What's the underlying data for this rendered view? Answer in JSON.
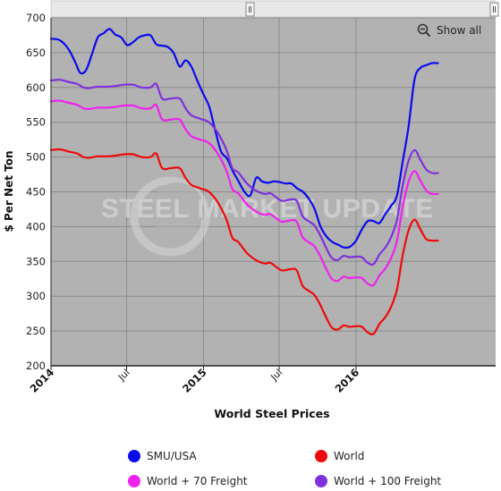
{
  "chart_data": {
    "type": "line",
    "title": "",
    "xlabel": "World Steel Prices",
    "ylabel": "$ Per Net Ton",
    "ylim": [
      200,
      700
    ],
    "yticks": [
      200,
      250,
      300,
      350,
      400,
      450,
      500,
      550,
      600,
      650,
      700
    ],
    "xlim": [
      "2014-01-01",
      "2016-11-30"
    ],
    "xticks": [
      {
        "date": "2014-01-01",
        "label": "2014",
        "major": true
      },
      {
        "date": "2014-07-01",
        "label": "Jul",
        "major": false
      },
      {
        "date": "2015-01-01",
        "label": "2015",
        "major": true
      },
      {
        "date": "2015-07-01",
        "label": "Jul",
        "major": false
      },
      {
        "date": "2016-01-01",
        "label": "2016",
        "major": true
      }
    ],
    "grid": true,
    "watermark": "STEEL MARKET UPDATE",
    "zoom_button": "Show all",
    "legend_position": "bottom",
    "series": [
      {
        "name": "SMU/USA",
        "color": "#0a0aee",
        "points": [
          [
            "2014-01-01",
            670
          ],
          [
            "2014-01-22",
            668
          ],
          [
            "2014-02-12",
            655
          ],
          [
            "2014-03-01",
            635
          ],
          [
            "2014-03-12",
            621
          ],
          [
            "2014-03-26",
            625
          ],
          [
            "2014-04-09",
            648
          ],
          [
            "2014-04-23",
            672
          ],
          [
            "2014-05-07",
            678
          ],
          [
            "2014-05-21",
            684
          ],
          [
            "2014-06-04",
            676
          ],
          [
            "2014-06-18",
            672
          ],
          [
            "2014-07-02",
            661
          ],
          [
            "2014-07-16",
            665
          ],
          [
            "2014-07-30",
            672
          ],
          [
            "2014-08-13",
            675
          ],
          [
            "2014-08-27",
            675
          ],
          [
            "2014-09-10",
            662
          ],
          [
            "2014-09-24",
            660
          ],
          [
            "2014-10-08",
            658
          ],
          [
            "2014-10-22",
            649
          ],
          [
            "2014-11-05",
            630
          ],
          [
            "2014-11-19",
            639
          ],
          [
            "2014-12-03",
            630
          ],
          [
            "2014-12-17",
            610
          ],
          [
            "2015-01-01",
            590
          ],
          [
            "2015-01-15",
            572
          ],
          [
            "2015-01-29",
            538
          ],
          [
            "2015-02-12",
            508
          ],
          [
            "2015-02-26",
            498
          ],
          [
            "2015-03-12",
            480
          ],
          [
            "2015-03-26",
            465
          ],
          [
            "2015-04-09",
            450
          ],
          [
            "2015-04-23",
            445
          ],
          [
            "2015-05-07",
            470
          ],
          [
            "2015-05-21",
            465
          ],
          [
            "2015-06-04",
            463
          ],
          [
            "2015-06-18",
            465
          ],
          [
            "2015-07-02",
            464
          ],
          [
            "2015-07-16",
            462
          ],
          [
            "2015-07-30",
            462
          ],
          [
            "2015-08-13",
            455
          ],
          [
            "2015-08-27",
            450
          ],
          [
            "2015-09-10",
            440
          ],
          [
            "2015-09-24",
            425
          ],
          [
            "2015-10-08",
            400
          ],
          [
            "2015-10-22",
            386
          ],
          [
            "2015-11-05",
            378
          ],
          [
            "2015-11-19",
            374
          ],
          [
            "2015-12-03",
            370
          ],
          [
            "2015-12-17",
            371
          ],
          [
            "2016-01-01",
            380
          ],
          [
            "2016-01-15",
            396
          ],
          [
            "2016-01-29",
            408
          ],
          [
            "2016-02-12",
            408
          ],
          [
            "2016-02-26",
            405
          ],
          [
            "2016-03-11",
            418
          ],
          [
            "2016-03-25",
            430
          ],
          [
            "2016-04-08",
            445
          ],
          [
            "2016-04-22",
            495
          ],
          [
            "2016-05-06",
            545
          ],
          [
            "2016-05-20",
            612
          ],
          [
            "2016-06-03",
            628
          ],
          [
            "2016-06-17",
            632
          ],
          [
            "2016-07-01",
            635
          ],
          [
            "2016-07-15",
            635
          ]
        ]
      },
      {
        "name": "World",
        "color": "#ee0a0a",
        "points": [
          [
            "2014-01-01",
            510
          ],
          [
            "2014-01-22",
            511
          ],
          [
            "2014-02-12",
            508
          ],
          [
            "2014-03-05",
            505
          ],
          [
            "2014-03-19",
            500
          ],
          [
            "2014-04-02",
            499
          ],
          [
            "2014-04-23",
            501
          ],
          [
            "2014-05-14",
            501
          ],
          [
            "2014-06-04",
            502
          ],
          [
            "2014-06-25",
            504
          ],
          [
            "2014-07-16",
            504
          ],
          [
            "2014-08-06",
            500
          ],
          [
            "2014-08-27",
            500
          ],
          [
            "2014-09-10",
            505
          ],
          [
            "2014-09-24",
            484
          ],
          [
            "2014-10-15",
            484
          ],
          [
            "2014-11-05",
            484
          ],
          [
            "2014-11-19",
            470
          ],
          [
            "2014-12-03",
            460
          ],
          [
            "2014-12-24",
            455
          ],
          [
            "2015-01-14",
            450
          ],
          [
            "2015-02-04",
            435
          ],
          [
            "2015-02-25",
            410
          ],
          [
            "2015-03-11",
            384
          ],
          [
            "2015-03-25",
            378
          ],
          [
            "2015-04-15",
            362
          ],
          [
            "2015-05-06",
            352
          ],
          [
            "2015-05-27",
            347
          ],
          [
            "2015-06-10",
            348
          ],
          [
            "2015-06-24",
            342
          ],
          [
            "2015-07-08",
            337
          ],
          [
            "2015-07-29",
            339
          ],
          [
            "2015-08-12",
            337
          ],
          [
            "2015-08-26",
            315
          ],
          [
            "2015-09-09",
            308
          ],
          [
            "2015-09-23",
            302
          ],
          [
            "2015-10-07",
            288
          ],
          [
            "2015-10-21",
            270
          ],
          [
            "2015-11-04",
            255
          ],
          [
            "2015-11-18",
            252
          ],
          [
            "2015-12-02",
            258
          ],
          [
            "2015-12-16",
            256
          ],
          [
            "2016-01-01",
            257
          ],
          [
            "2016-01-15",
            256
          ],
          [
            "2016-01-29",
            248
          ],
          [
            "2016-02-12",
            246
          ],
          [
            "2016-02-26",
            260
          ],
          [
            "2016-03-11",
            270
          ],
          [
            "2016-03-25",
            285
          ],
          [
            "2016-04-08",
            310
          ],
          [
            "2016-04-22",
            360
          ],
          [
            "2016-05-06",
            395
          ],
          [
            "2016-05-20",
            410
          ],
          [
            "2016-06-03",
            396
          ],
          [
            "2016-06-17",
            382
          ],
          [
            "2016-07-01",
            380
          ],
          [
            "2016-07-15",
            380
          ]
        ]
      },
      {
        "name": "World + 70 Freight",
        "color": "#ee22ee",
        "points": [
          [
            "2014-01-01",
            580
          ],
          [
            "2014-01-22",
            581
          ],
          [
            "2014-02-12",
            578
          ],
          [
            "2014-03-05",
            575
          ],
          [
            "2014-03-19",
            570
          ],
          [
            "2014-04-02",
            569
          ],
          [
            "2014-04-23",
            571
          ],
          [
            "2014-05-14",
            571
          ],
          [
            "2014-06-04",
            572
          ],
          [
            "2014-06-25",
            574
          ],
          [
            "2014-07-16",
            574
          ],
          [
            "2014-08-06",
            570
          ],
          [
            "2014-08-27",
            570
          ],
          [
            "2014-09-10",
            575
          ],
          [
            "2014-09-24",
            554
          ],
          [
            "2014-10-15",
            554
          ],
          [
            "2014-11-05",
            554
          ],
          [
            "2014-11-19",
            540
          ],
          [
            "2014-12-03",
            530
          ],
          [
            "2014-12-24",
            525
          ],
          [
            "2015-01-14",
            520
          ],
          [
            "2015-02-04",
            505
          ],
          [
            "2015-02-25",
            480
          ],
          [
            "2015-03-11",
            454
          ],
          [
            "2015-03-25",
            448
          ],
          [
            "2015-04-15",
            432
          ],
          [
            "2015-05-06",
            422
          ],
          [
            "2015-05-27",
            417
          ],
          [
            "2015-06-10",
            418
          ],
          [
            "2015-06-24",
            412
          ],
          [
            "2015-07-08",
            407
          ],
          [
            "2015-07-29",
            409
          ],
          [
            "2015-08-12",
            407
          ],
          [
            "2015-08-26",
            385
          ],
          [
            "2015-09-09",
            378
          ],
          [
            "2015-09-23",
            372
          ],
          [
            "2015-10-07",
            358
          ],
          [
            "2015-10-21",
            340
          ],
          [
            "2015-11-04",
            325
          ],
          [
            "2015-11-18",
            322
          ],
          [
            "2015-12-02",
            328
          ],
          [
            "2015-12-16",
            326
          ],
          [
            "2016-01-01",
            327
          ],
          [
            "2016-01-15",
            326
          ],
          [
            "2016-01-29",
            318
          ],
          [
            "2016-02-12",
            316
          ],
          [
            "2016-02-26",
            330
          ],
          [
            "2016-03-11",
            340
          ],
          [
            "2016-03-25",
            355
          ],
          [
            "2016-04-08",
            380
          ],
          [
            "2016-04-22",
            430
          ],
          [
            "2016-05-06",
            465
          ],
          [
            "2016-05-20",
            480
          ],
          [
            "2016-06-03",
            466
          ],
          [
            "2016-06-17",
            452
          ],
          [
            "2016-07-01",
            447
          ],
          [
            "2016-07-15",
            447
          ]
        ]
      },
      {
        "name": "World + 100 Freight",
        "color": "#8030dd",
        "points": [
          [
            "2014-01-01",
            610
          ],
          [
            "2014-01-22",
            611
          ],
          [
            "2014-02-12",
            608
          ],
          [
            "2014-03-05",
            605
          ],
          [
            "2014-03-19",
            600
          ],
          [
            "2014-04-02",
            599
          ],
          [
            "2014-04-23",
            601
          ],
          [
            "2014-05-14",
            601
          ],
          [
            "2014-06-04",
            602
          ],
          [
            "2014-06-25",
            604
          ],
          [
            "2014-07-16",
            604
          ],
          [
            "2014-08-06",
            600
          ],
          [
            "2014-08-27",
            600
          ],
          [
            "2014-09-10",
            605
          ],
          [
            "2014-09-24",
            584
          ],
          [
            "2014-10-15",
            584
          ],
          [
            "2014-11-05",
            584
          ],
          [
            "2014-11-19",
            570
          ],
          [
            "2014-12-03",
            560
          ],
          [
            "2014-12-24",
            555
          ],
          [
            "2015-01-14",
            550
          ],
          [
            "2015-02-04",
            535
          ],
          [
            "2015-02-25",
            510
          ],
          [
            "2015-03-11",
            484
          ],
          [
            "2015-03-25",
            478
          ],
          [
            "2015-04-15",
            462
          ],
          [
            "2015-05-06",
            452
          ],
          [
            "2015-05-27",
            447
          ],
          [
            "2015-06-10",
            448
          ],
          [
            "2015-06-24",
            442
          ],
          [
            "2015-07-08",
            437
          ],
          [
            "2015-07-29",
            439
          ],
          [
            "2015-08-12",
            437
          ],
          [
            "2015-08-26",
            415
          ],
          [
            "2015-09-09",
            408
          ],
          [
            "2015-09-23",
            402
          ],
          [
            "2015-10-07",
            388
          ],
          [
            "2015-10-21",
            370
          ],
          [
            "2015-11-04",
            355
          ],
          [
            "2015-11-18",
            352
          ],
          [
            "2015-12-02",
            358
          ],
          [
            "2015-12-16",
            356
          ],
          [
            "2016-01-01",
            357
          ],
          [
            "2016-01-15",
            356
          ],
          [
            "2016-01-29",
            348
          ],
          [
            "2016-02-12",
            346
          ],
          [
            "2016-02-26",
            360
          ],
          [
            "2016-03-11",
            370
          ],
          [
            "2016-03-25",
            385
          ],
          [
            "2016-04-08",
            410
          ],
          [
            "2016-04-22",
            460
          ],
          [
            "2016-05-06",
            495
          ],
          [
            "2016-05-20",
            510
          ],
          [
            "2016-06-03",
            496
          ],
          [
            "2016-06-17",
            482
          ],
          [
            "2016-07-01",
            477
          ],
          [
            "2016-07-15",
            477
          ]
        ]
      }
    ]
  }
}
